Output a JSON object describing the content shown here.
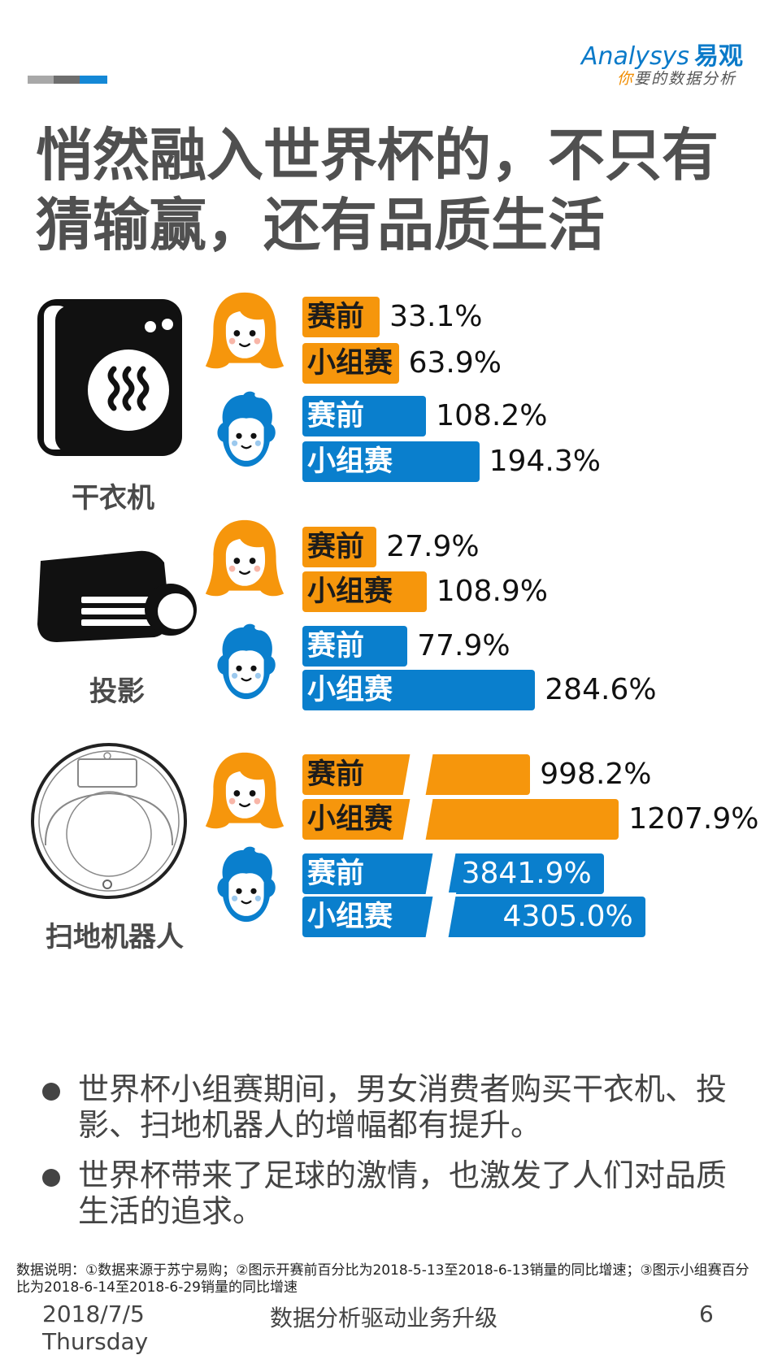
{
  "logo": {
    "brand": "Analysys",
    "brand_cn": "易观",
    "slogan_prefix": "你",
    "slogan": "要的数据分析"
  },
  "title": "悄然融入世界杯的，不只有猜输赢，还有品质生活",
  "colors": {
    "female": "#f6960c",
    "male": "#0a7fcd",
    "title": "#505050"
  },
  "chart_data": {
    "type": "bar",
    "unit": "%",
    "series": [
      {
        "name": "赛前"
      },
      {
        "name": "小组赛"
      }
    ],
    "groups": [
      {
        "category": "干衣机",
        "icon": "dryer-icon",
        "female": {
          "icon": "female-face-icon",
          "values": [
            33.1,
            63.9
          ],
          "labels": [
            "33.1%",
            "63.9%"
          ]
        },
        "male": {
          "icon": "male-face-icon",
          "values": [
            108.2,
            194.3
          ],
          "labels": [
            "108.2%",
            "194.3%"
          ]
        }
      },
      {
        "category": "投影",
        "icon": "projector-icon",
        "female": {
          "icon": "female-face-icon",
          "values": [
            27.9,
            108.9
          ],
          "labels": [
            "27.9%",
            "108.9%"
          ]
        },
        "male": {
          "icon": "male-face-icon",
          "values": [
            77.9,
            284.6
          ],
          "labels": [
            "77.9%",
            "284.6%"
          ]
        }
      },
      {
        "category": "扫地机器人",
        "icon": "robot-vacuum-icon",
        "axis_break": true,
        "female": {
          "icon": "female-face-icon",
          "values": [
            998.2,
            1207.9
          ],
          "labels": [
            "998.2%",
            "1207.9%"
          ]
        },
        "male": {
          "icon": "male-face-icon",
          "values": [
            3841.9,
            4305.0
          ],
          "labels": [
            "3841.9%",
            "4305.0%"
          ]
        }
      }
    ]
  },
  "bullets": [
    "世界杯小组赛期间，男女消费者购买干衣机、投影、扫地机器人的增幅都有提升。",
    "世界杯带来了足球的激情，也激发了人们对品质生活的追求。"
  ],
  "note": "数据说明：①数据来源于苏宁易购；②图示开赛前百分比为2018-5-13至2018-6-13销量的同比增速；③图示小组赛百分比为2018-6-14至2018-6-29销量的同比增速",
  "footer": {
    "date": "2018/7/5",
    "weekday": "Thursday",
    "center": "数据分析驱动业务升级",
    "page": "6"
  }
}
